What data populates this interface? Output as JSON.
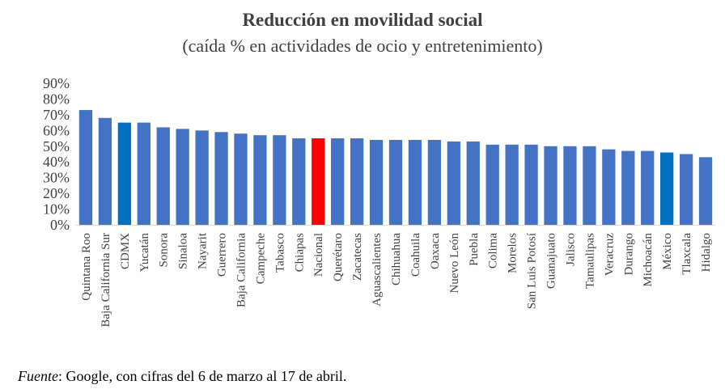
{
  "chart_data": {
    "type": "bar",
    "title": "Reducción en movilidad social",
    "subtitle": "(caída % en actividades de ocio y entretenimiento)",
    "categories": [
      "Quintana Roo",
      "Baja California Sur",
      "CDMX",
      "Yucatán",
      "Sonora",
      "Sinaloa",
      "Nayarit",
      "Guerrero",
      "Baja California",
      "Campeche",
      "Tabasco",
      "Chiapas",
      "Nacional",
      "Querétaro",
      "Zacatecas",
      "Aguascalientes",
      "Chihuahua",
      "Coahuila",
      "Oaxaca",
      "Nuevo León",
      "Puebla",
      "Colima",
      "Morelos",
      "San Luis Potosí",
      "Guanajuato",
      "Jalisco",
      "Tamaulipas",
      "Veracruz",
      "Durango",
      "Michoacán",
      "México",
      "Tlaxcala",
      "Hidalgo"
    ],
    "values": [
      73,
      68,
      65,
      65,
      62,
      61,
      60,
      59,
      58,
      57,
      57,
      55,
      55,
      55,
      55,
      54,
      54,
      54,
      54,
      53,
      53,
      51,
      51,
      51,
      50,
      50,
      50,
      48,
      47,
      47,
      46,
      45,
      43
    ],
    "colors": {
      "default": "#4472C4",
      "highlight_dark": "#0070C0",
      "highlight_red": "#FF0000"
    },
    "highlight": {
      "CDMX": "highlight_dark",
      "México": "highlight_dark",
      "Nacional": "highlight_red"
    },
    "ylim": [
      0,
      90
    ],
    "yticks": [
      0,
      10,
      20,
      30,
      40,
      50,
      60,
      70,
      80,
      90
    ],
    "ytick_suffix": "%",
    "grid": false,
    "legend": "none"
  },
  "footnote": {
    "source_label": "Fuente",
    "text": ": Google, con cifras del 6 de marzo al 17 de abril."
  }
}
